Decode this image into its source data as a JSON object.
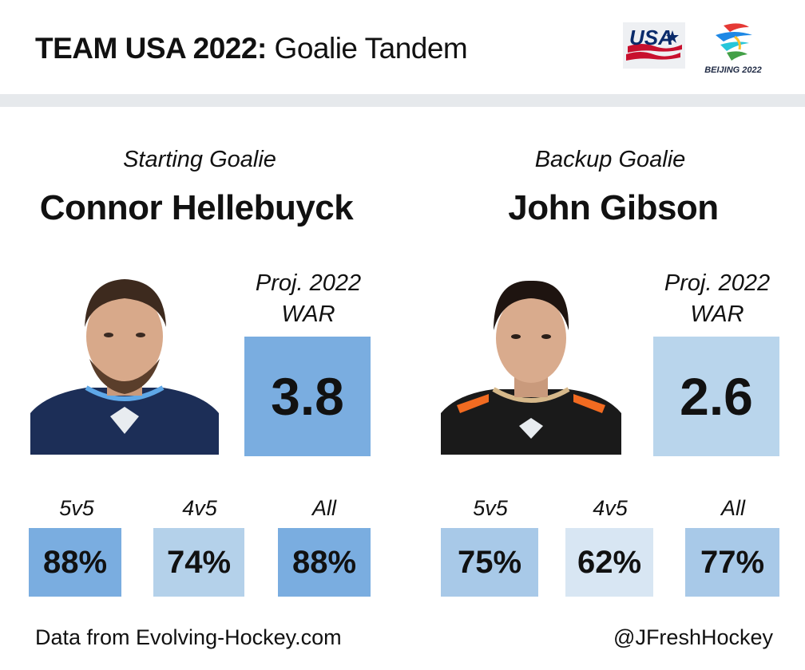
{
  "header": {
    "title_bold": "TEAM USA 2022:",
    "title_rest": "Goalie Tandem",
    "logos": [
      {
        "name": "usa-hockey-logo",
        "text": "USA"
      },
      {
        "name": "beijing-2022-logo",
        "text": "BEIJING 2022"
      }
    ]
  },
  "goalies": [
    {
      "role": "Starting Goalie",
      "name": "Connor Hellebuyck",
      "war_label_line1": "Proj. 2022",
      "war_label_line2": "WAR",
      "war": "3.8",
      "war_color": "#7aade0",
      "jersey_color": "#1c2e57",
      "splits": [
        {
          "label": "5v5",
          "value": "88%",
          "color": "#7aade0"
        },
        {
          "label": "4v5",
          "value": "74%",
          "color": "#b4d1ea"
        },
        {
          "label": "All",
          "value": "88%",
          "color": "#7aade0"
        }
      ]
    },
    {
      "role": "Backup Goalie",
      "name": "John Gibson",
      "war_label_line1": "Proj. 2022",
      "war_label_line2": "WAR",
      "war": "2.6",
      "war_color": "#b9d5ec",
      "jersey_color": "#1a1a1a",
      "splits": [
        {
          "label": "5v5",
          "value": "75%",
          "color": "#a8c9e8"
        },
        {
          "label": "4v5",
          "value": "62%",
          "color": "#d8e6f3"
        },
        {
          "label": "All",
          "value": "77%",
          "color": "#a8c9e8"
        }
      ]
    }
  ],
  "footer": {
    "source": "Data from Evolving-Hockey.com",
    "handle": "@JFreshHockey"
  }
}
